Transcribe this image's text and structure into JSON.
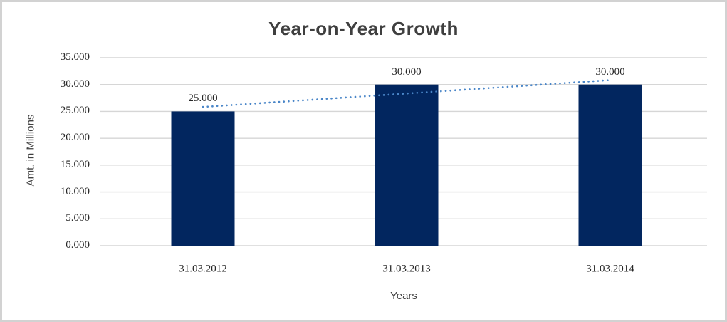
{
  "chart_data": {
    "type": "bar",
    "title": "Year-on-Year Growth",
    "xlabel": "Years",
    "ylabel": "Amt. in Millions",
    "categories": [
      "31.03.2012",
      "31.03.2013",
      "31.03.2014"
    ],
    "values": [
      25,
      30,
      30
    ],
    "data_labels": [
      "25.000",
      "30.000",
      "30.000"
    ],
    "ylim": [
      0,
      35
    ],
    "ytick_step": 5,
    "ytick_labels": [
      "0.000",
      "5.000",
      "10.000",
      "15.000",
      "20.000",
      "25.000",
      "30.000",
      "35.000"
    ],
    "grid": true,
    "legend": "none",
    "trendline": {
      "type": "linear",
      "style": "dotted"
    },
    "colors": {
      "bar": "#02265f",
      "trendline": "#4a86c8",
      "gridline": "#d6d6d6",
      "title": "#3f3f3f",
      "tick_label": "#262626",
      "axis_title": "#404040",
      "frame_border": "#d2d2d2",
      "background": "#ffffff"
    }
  }
}
